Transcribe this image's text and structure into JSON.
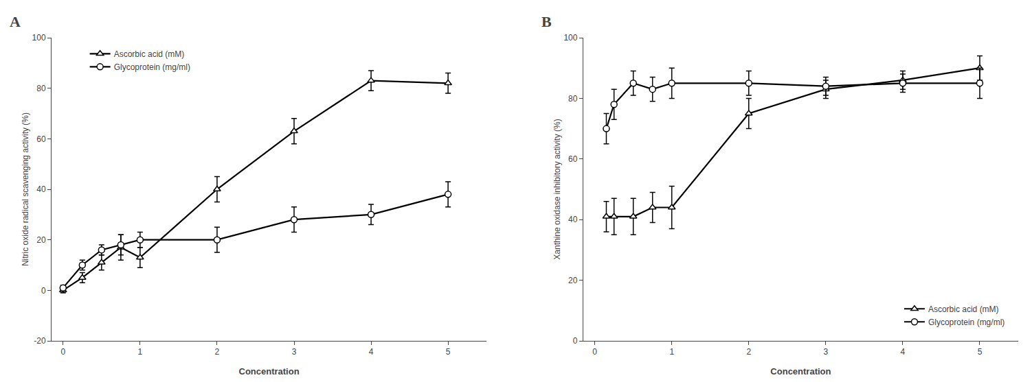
{
  "chart_data": [
    {
      "type": "line",
      "title": "A",
      "x_label": "Concentration",
      "y_label": "Nitric oxide radical scavenging activity (%)",
      "xlim": [
        -0.15,
        5.5
      ],
      "xticks": [
        0,
        1,
        2,
        3,
        4,
        5
      ],
      "ylim": [
        -20,
        100
      ],
      "yticks": [
        -20,
        0,
        20,
        40,
        60,
        80,
        100
      ],
      "grid": false,
      "legend": "upper left",
      "x": [
        0,
        0.25,
        0.5,
        0.75,
        1.0,
        2.0,
        3.0,
        4.0,
        5.0
      ],
      "series": [
        {
          "name": "Ascorbic acid (mM)",
          "color": "#000000",
          "marker": "triangle",
          "values": [
            0,
            5,
            11,
            17,
            13,
            40,
            63,
            83,
            82
          ],
          "error": [
            1,
            2,
            3,
            5,
            4,
            5,
            5,
            4,
            4
          ]
        },
        {
          "name": "Glycoprotein (mg/ml)",
          "color": "#000000",
          "marker": "circle",
          "values": [
            1,
            10,
            16,
            18,
            20,
            20,
            28,
            30,
            38
          ],
          "error": [
            1,
            2,
            2,
            4,
            3,
            5,
            5,
            4,
            5
          ]
        }
      ]
    },
    {
      "type": "line",
      "title": "B",
      "x_label": "Concentration",
      "y_label": "Xanthine oxidase inhibitory activity (%)",
      "xlim": [
        -0.15,
        5.5
      ],
      "xticks": [
        0,
        1,
        2,
        3,
        4,
        5
      ],
      "ylim": [
        0,
        100
      ],
      "yticks": [
        0,
        20,
        40,
        60,
        80,
        100
      ],
      "grid": false,
      "legend": "lower right",
      "x": [
        0.15,
        0.25,
        0.5,
        0.75,
        1.0,
        2.0,
        3.0,
        4.0,
        5.0
      ],
      "series": [
        {
          "name": "Ascorbic acid (mM)",
          "color": "#000000",
          "marker": "triangle",
          "values": [
            41,
            41,
            41,
            44,
            44,
            75,
            83,
            86,
            90
          ],
          "error": [
            5,
            6,
            6,
            5,
            7,
            5,
            3,
            3,
            4
          ]
        },
        {
          "name": "Glycoprotein (mg/ml)",
          "color": "#000000",
          "marker": "circle",
          "values": [
            70,
            78,
            85,
            83,
            85,
            85,
            84,
            85,
            85
          ],
          "error": [
            5,
            5,
            4,
            4,
            5,
            4,
            3,
            3,
            5
          ]
        }
      ]
    }
  ]
}
